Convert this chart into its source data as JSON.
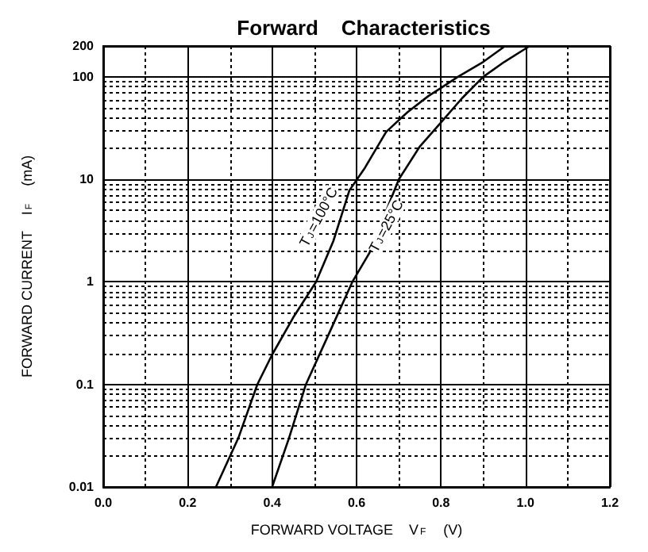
{
  "chart_data": {
    "type": "line",
    "title": "Forward    Characteristics",
    "xlabel": "FORWARD VOLTAGE    V$_{F}$    (V)",
    "ylabel": "FORWARD CURRENT    I$_{F}$    (mA)",
    "series": [
      {
        "color": "#000000",
        "x": [
          0.267,
          0.32,
          0.365,
          0.4,
          0.45,
          0.504,
          0.545,
          0.583,
          0.62,
          0.67,
          0.72,
          0.77,
          0.8,
          0.84,
          0.9,
          0.952
        ],
        "values": [
          0.01,
          0.03,
          0.1,
          0.195,
          0.45,
          1,
          2.5,
          7.8,
          13,
          29,
          45,
          65,
          78,
          100,
          140,
          200
        ]
      },
      {
        "color": "#000000",
        "x": [
          0.4,
          0.44,
          0.48,
          0.54,
          0.59,
          0.63,
          0.7,
          0.75,
          0.8,
          0.85,
          0.9,
          0.95,
          1.01
        ],
        "values": [
          0.01,
          0.03,
          0.1,
          0.35,
          1,
          1.9,
          10,
          21,
          36,
          62,
          100,
          140,
          200
        ]
      }
    ],
    "annotations": [
      {
        "text": "T$_{J}$=100°C",
        "x": 0.51,
        "y": 4.3
      },
      {
        "text": "T$_{J}$=25°C",
        "x": 0.67,
        "y": 3.5
      }
    ],
    "xlim": [
      0,
      1.2
    ],
    "xticks": [
      {
        "value": 0,
        "label": "0.0"
      },
      0.2,
      0.4,
      0.6,
      0.8,
      {
        "value": 1,
        "label": "1.0"
      },
      1.2
    ],
    "ylim": [
      0.01,
      200
    ],
    "yticks": [
      0.01,
      0.1,
      1,
      10,
      100,
      200
    ],
    "log": true,
    "grid": true,
    "marker": "none",
    "line_style": "solid"
  }
}
